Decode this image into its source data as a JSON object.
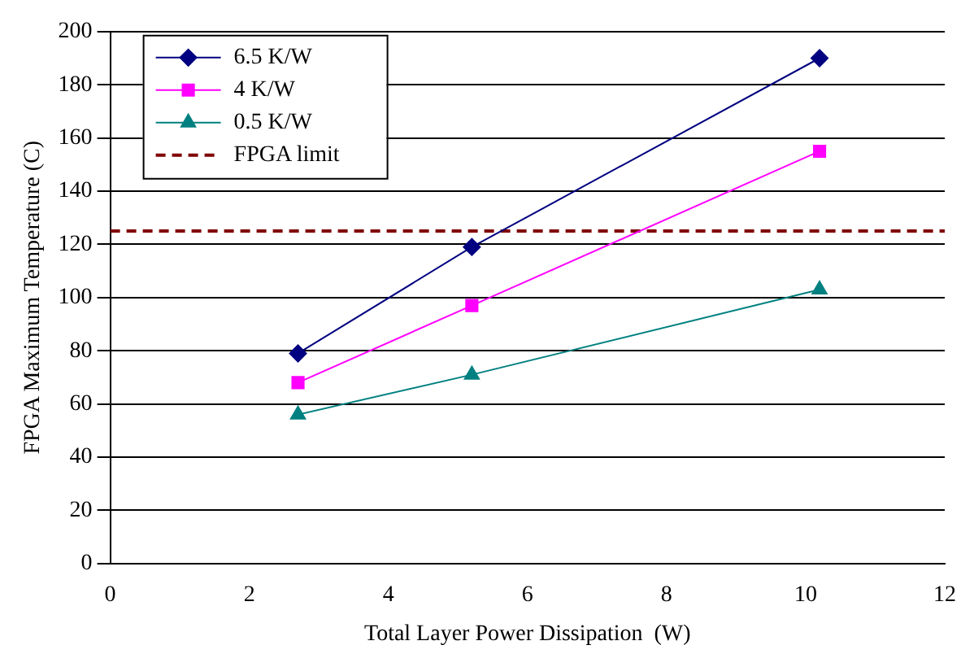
{
  "chart_data": {
    "type": "line",
    "xlabel": "Total Layer Power Dissipation  (W)",
    "ylabel": "FPGA Maximum Temperature (C)",
    "x": [
      2.7,
      5.2,
      10.2
    ],
    "series": [
      {
        "name": "6.5 K/W",
        "color": "#000080",
        "values": [
          79,
          119,
          190
        ],
        "marker": "diamond"
      },
      {
        "name": "4 K/W",
        "color": "#ff00ff",
        "values": [
          68,
          97,
          155
        ],
        "marker": "square"
      },
      {
        "name": "0.5 K/W",
        "color": "#008080",
        "values": [
          56,
          71,
          103
        ],
        "marker": "triangle"
      }
    ],
    "ref_lines": [
      {
        "axis": "y",
        "value": 125,
        "label": "FPGA limit",
        "color": "#800000",
        "line_style": "dashed"
      }
    ],
    "xlim": [
      0,
      12
    ],
    "xticks": [
      0,
      2,
      4,
      6,
      8,
      10,
      12
    ],
    "ylim": [
      0,
      200
    ],
    "yticks": [
      0,
      20,
      40,
      60,
      80,
      100,
      120,
      140,
      160,
      180,
      200
    ],
    "grid": "y",
    "legend": "top left"
  }
}
